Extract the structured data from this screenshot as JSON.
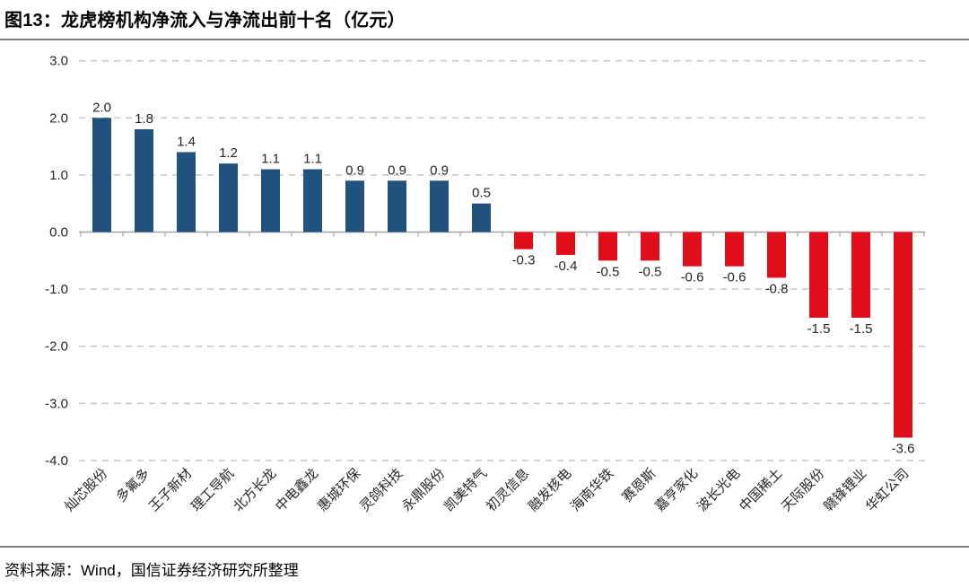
{
  "header": {
    "title": "图13：龙虎榜机构净流入与净流出前十名（亿元）"
  },
  "footer": {
    "source": "资料来源：Wind，国信证券经济研究所整理"
  },
  "chart_data": {
    "type": "bar",
    "title": "龙虎榜机构净流入与净流出前十名（亿元）",
    "unit": "亿元",
    "categories": [
      "灿芯股份",
      "多氟多",
      "王子新材",
      "理工导航",
      "北方长龙",
      "中电鑫龙",
      "惠城环保",
      "灵鸽科技",
      "永鼎股份",
      "凯美特气",
      "初灵信息",
      "融发核电",
      "海南华铁",
      "赛恩斯",
      "嘉亨家化",
      "波长光电",
      "中国稀土",
      "天际股份",
      "赣锋锂业",
      "华虹公司"
    ],
    "values": [
      2.0,
      1.8,
      1.4,
      1.2,
      1.1,
      1.1,
      0.9,
      0.9,
      0.9,
      0.5,
      -0.3,
      -0.4,
      -0.5,
      -0.5,
      -0.6,
      -0.6,
      -0.8,
      -1.5,
      -1.5,
      -3.6
    ],
    "data_labels": [
      "2.0",
      "1.8",
      "1.4",
      "1.2",
      "1.1",
      "1.1",
      "0.9",
      "0.9",
      "0.9",
      "0.5",
      "-0.3",
      "-0.4",
      "-0.5",
      "-0.5",
      "-0.6",
      "-0.6",
      "-0.8",
      "-1.5",
      "-1.5",
      "-3.6"
    ],
    "xlabel": "",
    "ylabel": "",
    "ylim": [
      -4.0,
      3.0
    ],
    "yticks": [
      3.0,
      2.0,
      1.0,
      0.0,
      -1.0,
      -2.0,
      -3.0,
      -4.0
    ],
    "grid": "horizontal-dashed",
    "legend": "none",
    "colors": {
      "positive_bar": "#21527E",
      "negative_bar": "#E00D1B",
      "gridline": "#C9C9C9",
      "axis": "#A6A6A6",
      "tick_label": "#262626",
      "data_label": "#262626",
      "category_label": "#262626"
    }
  }
}
